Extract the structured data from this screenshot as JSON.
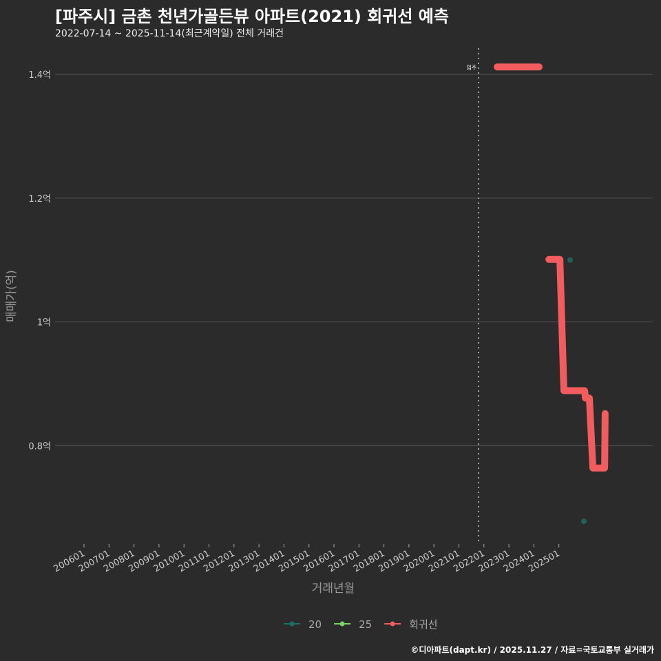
{
  "title": "[파주시] 금촌 천년가골든뷰 아파트(2021) 회귀선 예측",
  "subtitle": "2022-07-14 ~ 2025-11-14(최근계약일) 전체 거래건",
  "caption": "©디아파트(dapt.kr) / 2025.11.27 / 자료=국토교통부 실거래가",
  "chart_data": {
    "type": "line",
    "xlabel": "거래년월",
    "ylabel": "매매가(억)",
    "x_ticks": [
      "200601",
      "200701",
      "200801",
      "200901",
      "201001",
      "201101",
      "201201",
      "201301",
      "201401",
      "201501",
      "201601",
      "201701",
      "201801",
      "201901",
      "202001",
      "202101",
      "202201",
      "202301",
      "202401",
      "202501"
    ],
    "y_ticks": [
      {
        "value": 0.8,
        "label": "0.8억"
      },
      {
        "value": 1.0,
        "label": "1억"
      },
      {
        "value": 1.2,
        "label": "1.2억"
      },
      {
        "value": 1.4,
        "label": "1.4억"
      }
    ],
    "xlim": [
      2004.85,
      2029.0
    ],
    "ylim": [
      0.65,
      1.445
    ],
    "vline": {
      "x": 2021.79,
      "label": "입주"
    },
    "occupancy_bar": {
      "x": [
        2022.53,
        2024.21
      ],
      "y": 1.412
    },
    "series": [
      {
        "name": "20",
        "color": "#1f6f66",
        "points": [
          [
            2025.45,
            1.1
          ],
          [
            2026.0,
            0.678
          ]
        ]
      },
      {
        "name": "25",
        "color": "#7bd16b",
        "points": []
      },
      {
        "name": "회귀선",
        "color": "#f25c5e",
        "line": [
          [
            2024.6,
            1.101
          ],
          [
            2025.04,
            1.101
          ],
          [
            2025.2,
            0.889
          ],
          [
            2026.03,
            0.889
          ],
          [
            2026.06,
            0.877
          ],
          [
            2026.22,
            0.877
          ],
          [
            2026.36,
            0.764
          ],
          [
            2026.83,
            0.764
          ],
          [
            2026.85,
            0.852
          ]
        ]
      }
    ]
  }
}
